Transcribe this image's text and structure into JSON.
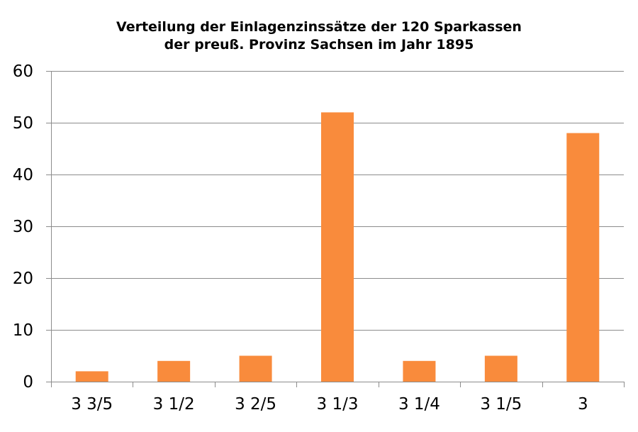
{
  "chart_data": {
    "type": "bar",
    "title_lines": [
      "Verteilung der Einlagenzinssätze der 120 Sparkassen",
      "der preuß. Provinz Sachsen im Jahr 1895"
    ],
    "categories": [
      "3 3/5",
      "3 1/2",
      "3 2/5",
      "3 1/3",
      "3 1/4",
      "3 1/5",
      "3"
    ],
    "values": [
      2,
      4,
      5,
      52,
      4,
      5,
      48
    ],
    "xlabel": "",
    "ylabel": "",
    "ylim": [
      0,
      60
    ],
    "yticks": [
      0,
      10,
      20,
      30,
      40,
      50,
      60
    ],
    "grid": true,
    "legend": "none",
    "colors": {
      "bar": "#F98B3C",
      "grid": "#8C8C8C",
      "axis": "#8C8C8C",
      "text": "#000000"
    }
  }
}
